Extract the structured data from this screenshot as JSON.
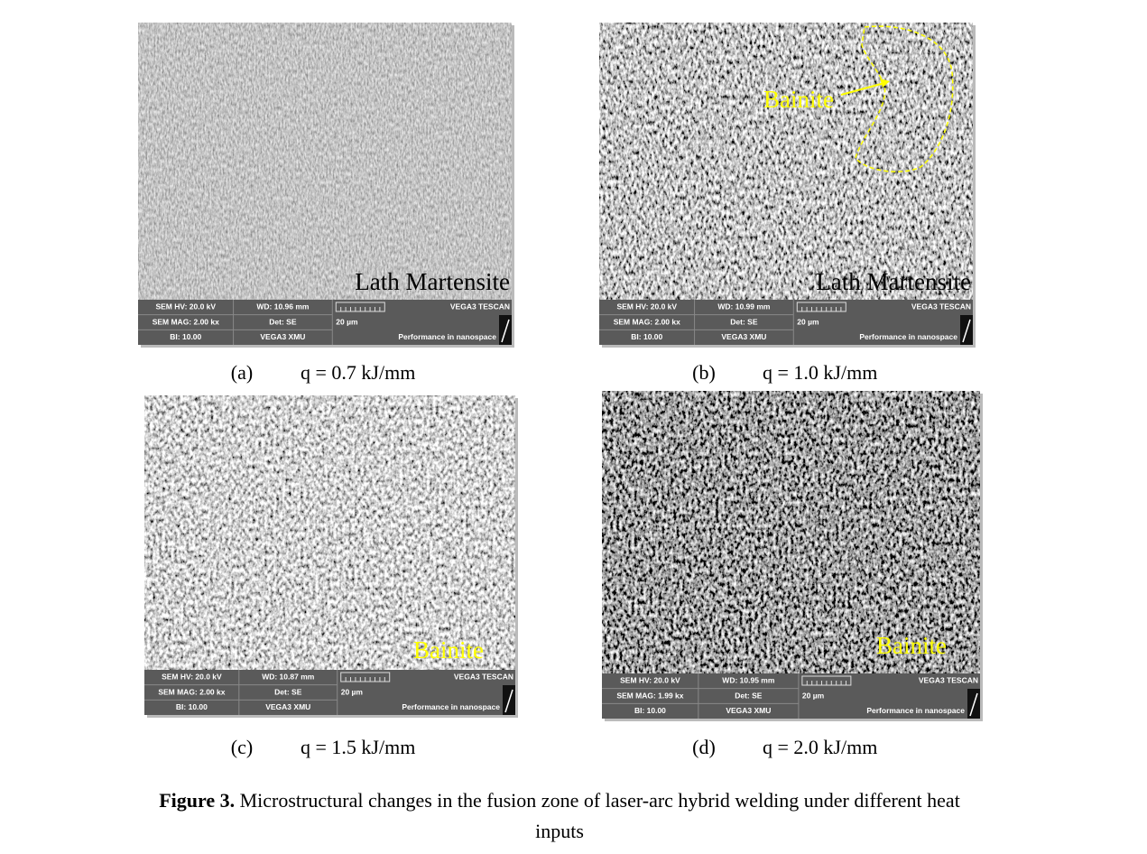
{
  "panels": [
    {
      "label": "(a)",
      "caption": "q = 0.7 kJ/mm",
      "annotations": [
        {
          "text": "Lath Martensite",
          "color": "#000000"
        }
      ],
      "info": {
        "hv": "SEM HV: 20.0 kV",
        "wd": "WD: 10.96 mm",
        "brand": "VEGA3 TESCAN",
        "mag": "SEM MAG: 2.00 kx",
        "det": "Det: SE",
        "scale": "20 µm",
        "bi": "BI: 10.00",
        "model": "VEGA3 XMU",
        "slogan": "Performance in nanospace"
      }
    },
    {
      "label": "(b)",
      "caption": "q = 1.0 kJ/mm",
      "annotations": [
        {
          "text": "Bainite",
          "color": "#ffff00"
        },
        {
          "text": "Lath Martensite",
          "color": "#000000"
        }
      ],
      "info": {
        "hv": "SEM HV: 20.0 kV",
        "wd": "WD: 10.99 mm",
        "brand": "VEGA3 TESCAN",
        "mag": "SEM MAG: 2.00 kx",
        "det": "Det: SE",
        "scale": "20 µm",
        "bi": "BI: 10.00",
        "model": "VEGA3 XMU",
        "slogan": "Performance in nanospace"
      }
    },
    {
      "label": "(c)",
      "caption": "q = 1.5 kJ/mm",
      "annotations": [
        {
          "text": "Bainite",
          "color": "#ffff00"
        }
      ],
      "info": {
        "hv": "SEM HV: 20.0 kV",
        "wd": "WD: 10.87 mm",
        "brand": "VEGA3 TESCAN",
        "mag": "SEM MAG: 2.00 kx",
        "det": "Det: SE",
        "scale": "20 µm",
        "bi": "BI: 10.00",
        "model": "VEGA3 XMU",
        "slogan": "Performance in nanospace"
      }
    },
    {
      "label": "(d)",
      "caption": "q = 2.0 kJ/mm",
      "annotations": [
        {
          "text": "Bainite",
          "color": "#ffff00"
        }
      ],
      "info": {
        "hv": "SEM HV: 20.0 kV",
        "wd": "WD: 10.95 mm",
        "brand": "VEGA3 TESCAN",
        "mag": "SEM MAG: 1.99 kx",
        "det": "Det: SE",
        "scale": "20 µm",
        "bi": "BI: 10.00",
        "model": "VEGA3 XMU",
        "slogan": "Performance in nanospace"
      }
    }
  ],
  "figure_caption": {
    "label": "Figure 3.",
    "text": "Microstructural changes in the fusion zone of laser-arc hybrid welding under different heat inputs"
  }
}
